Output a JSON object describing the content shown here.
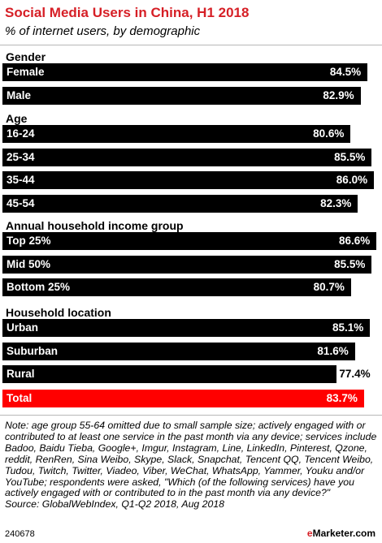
{
  "chart_data": {
    "type": "bar",
    "title": "Social Media Users in China, H1 2018",
    "subtitle": "% of internet users, by demographic",
    "groups": [
      {
        "name": "Gender",
        "categories": [
          "Female",
          "Male"
        ],
        "values": [
          84.5,
          82.9
        ],
        "labels": [
          "84.5%",
          "82.9%"
        ]
      },
      {
        "name": "Age",
        "categories": [
          "16-24",
          "25-34",
          "35-44",
          "45-54"
        ],
        "values": [
          80.6,
          85.5,
          86.0,
          82.3
        ],
        "labels": [
          "80.6%",
          "85.5%",
          "86.0%",
          "82.3%"
        ]
      },
      {
        "name": "Annual household income group",
        "categories": [
          "Top 25%",
          "Mid 50%",
          "Bottom 25%"
        ],
        "values": [
          86.6,
          85.5,
          80.7
        ],
        "labels": [
          "86.6%",
          "85.5%",
          "80.7%"
        ]
      },
      {
        "name": "Household location",
        "categories": [
          "Urban",
          "Suburban",
          "Rural"
        ],
        "values": [
          85.1,
          81.6,
          77.4
        ],
        "labels": [
          "85.1%",
          "81.6%",
          "77.4%"
        ]
      }
    ],
    "total": {
      "category": "Total",
      "value": 83.7,
      "label": "83.7%"
    },
    "colors": {
      "bar": "#000000",
      "total_bar": "#ff0000",
      "title": "#d61f26"
    },
    "xlim": [
      0,
      100
    ],
    "grid": false,
    "legend": "none"
  },
  "note": "Note: age group 55-64 omitted due to small sample size; actively engaged with or contributed to at least one service in the past month via any device; services include Badoo, Baidu Tieba, Google+, Imgur, Instagram, Line, LinkedIn, Pinterest, Qzone, reddit, RenRen, Sina Weibo, Skype, Slack, Snapchat, Tencent QQ, Tencent Weibo, Tudou, Twitch, Twitter, Viadeo, Viber, WeChat, WhatsApp, Yammer, Youku and/or YouTube; respondents were asked, \"Which (of the following services) have you actively engaged with or contributed to in the past month via any device?\"",
  "source": "Source: GlobalWebIndex, Q1-Q2 2018, Aug 2018",
  "footer": {
    "id": "240678",
    "brand_prefix": "e",
    "brand_name": "Marketer",
    "brand_suffix": ".com"
  }
}
